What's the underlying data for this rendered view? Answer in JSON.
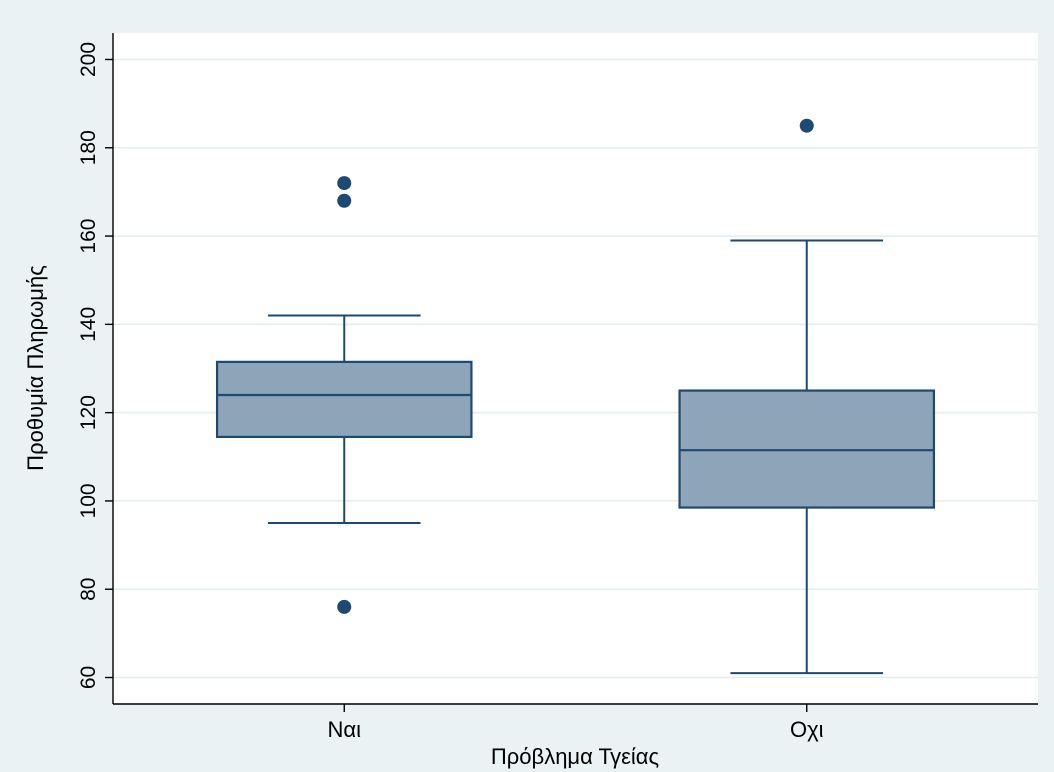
{
  "chart_data": {
    "type": "box",
    "xlabel": "Πρόβλημα Τγείας",
    "ylabel": "Προθυμία Πληρωμής",
    "ylim": [
      54,
      206
    ],
    "yticks": [
      60,
      80,
      100,
      120,
      140,
      160,
      180,
      200
    ],
    "grid": true,
    "categories": [
      "Ναι",
      "Οχι"
    ],
    "boxes": [
      {
        "category": "Ναι",
        "whisker_low": 95,
        "q1": 114.5,
        "median": 124,
        "q3": 131.5,
        "whisker_high": 142,
        "outliers": [
          76,
          168,
          172
        ]
      },
      {
        "category": "Οχι",
        "whisker_low": 61,
        "q1": 98.5,
        "median": 111.5,
        "q3": 125,
        "whisker_high": 159,
        "outliers": [
          185
        ]
      }
    ],
    "colors": {
      "box_fill": "#8ea4b9",
      "box_stroke": "#1c4a72",
      "outlier": "#1c4a72",
      "grid": "#e3ecee",
      "background": "#eaf2f3"
    }
  }
}
